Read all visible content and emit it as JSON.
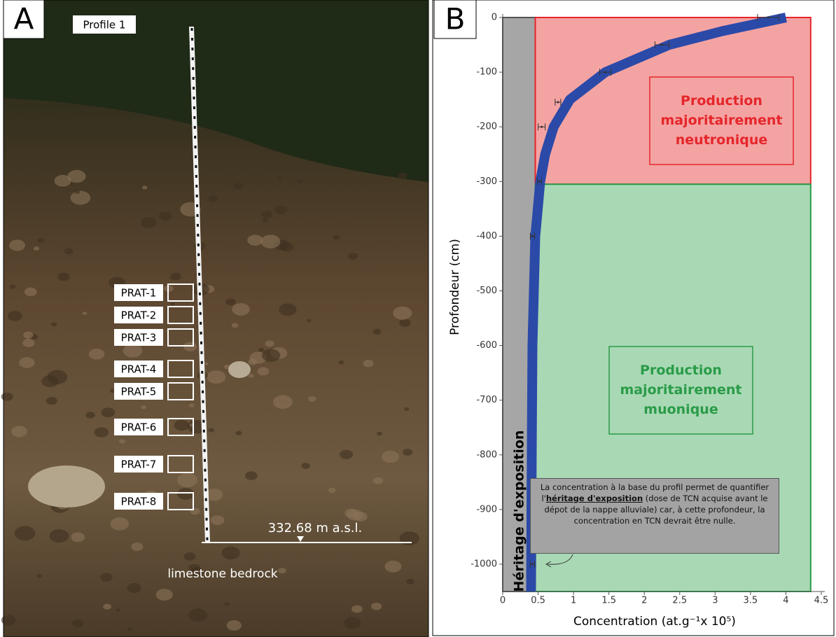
{
  "photo": {
    "panel": "A",
    "profile": "Profile 1",
    "samples": [
      "PRAT-1",
      "PRAT-2",
      "PRAT-3",
      "PRAT-4",
      "PRAT-5",
      "PRAT-6",
      "PRAT-7",
      "PRAT-8"
    ],
    "elevation": "332.68 m a.s.l.",
    "bedrock": "limestone bedrock"
  },
  "chart_data": {
    "type": "scatter",
    "panel": "B",
    "xlabel": "Concentration (at.g⁻¹x 10⁵)",
    "ylabel": "Profondeur (cm)",
    "xlim": [
      0,
      4.5
    ],
    "ylim": [
      -1050,
      0
    ],
    "xticks": [
      0,
      0.5,
      1,
      1.5,
      2,
      2.5,
      3,
      3.5,
      4,
      4.5
    ],
    "yticks": [
      0,
      -100,
      -200,
      -300,
      -400,
      -500,
      -600,
      -700,
      -800,
      -900,
      -1000
    ],
    "regions": [
      {
        "label": [
          "Héritage d'exposition"
        ],
        "color": "#a6a6a6",
        "x": [
          0,
          0.46
        ],
        "y": [
          -1050,
          0
        ]
      },
      {
        "label": [
          "Production",
          "majoritairement",
          "neutronique"
        ],
        "color": "#f4a3a3",
        "edge": "#e5262a",
        "text_color": "#e5262a",
        "x": [
          0.46,
          4.35
        ],
        "y": [
          -305,
          0
        ]
      },
      {
        "label": [
          "Production",
          "majoritairement",
          "muonique"
        ],
        "color": "#a8d9b4",
        "edge": "#2a9b48",
        "text_color": "#2a9b48",
        "x": [
          0.46,
          4.35
        ],
        "y": [
          -1050,
          -305
        ]
      }
    ],
    "curve": {
      "color": "#2b4aa8",
      "x": [
        4.0,
        3.1,
        2.35,
        1.45,
        0.95,
        0.72,
        0.6,
        0.53,
        0.46,
        0.42,
        0.41,
        0.4
      ],
      "y": [
        0,
        -25,
        -50,
        -100,
        -150,
        -200,
        -250,
        -300,
        -400,
        -600,
        -800,
        -1050
      ]
    },
    "points": {
      "color": "#333333",
      "x": [
        3.75,
        2.25,
        1.45,
        0.78,
        0.55,
        0.52,
        0.42,
        0.42
      ],
      "xerr": [
        0.15,
        0.1,
        0.08,
        0.04,
        0.05,
        0.03,
        0.03,
        0.03
      ],
      "depth": [
        0,
        -50,
        -100,
        -155,
        -200,
        -300,
        -400,
        -1000
      ]
    },
    "note": [
      "La concentration à la base du profil permet de quantifier l'",
      "héritage d'exposition",
      " (dose de TCN acquise avant le dépot de la nappe alluviale) car, à cette profondeur, la concentration en TCN devrait être nulle."
    ]
  }
}
